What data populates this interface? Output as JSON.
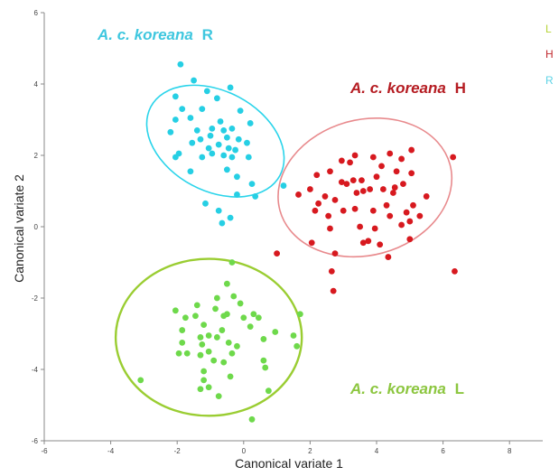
{
  "chart_data": {
    "type": "scatter",
    "xlabel": "Canonical variate 1",
    "ylabel": "Canonical variate 2",
    "xlim": [
      -6,
      9
    ],
    "ylim": [
      -6,
      6
    ],
    "x_ticks": [
      "-6",
      "-4",
      "-2",
      "0",
      "2",
      "4",
      "6",
      "8"
    ],
    "y_ticks": [
      "-6",
      "-4",
      "-2",
      "0",
      "2",
      "4",
      "6"
    ],
    "legend": [
      {
        "label": "L",
        "color": "#b5d334"
      },
      {
        "label": "H",
        "color": "#c0282d"
      },
      {
        "label": "R",
        "color": "#5dd3e6"
      }
    ],
    "annotations": [
      {
        "italic": "A. c. koreana",
        "suffix": "R",
        "color": "#3fc7df"
      },
      {
        "italic": "A. c. koreana",
        "suffix": "H",
        "color": "#b51c22"
      },
      {
        "italic": "A. c. koreana",
        "suffix": "L",
        "color": "#8cc63f"
      }
    ],
    "series": [
      {
        "color": "#2ad4ea",
        "point_color": "#26cfe4",
        "ellipse": {
          "cx": -0.85,
          "cy": 2.4,
          "rx": 1.5,
          "ry": 2.05,
          "angle": 62
        },
        "points": [
          [
            -1.9,
            4.55
          ],
          [
            -1.5,
            4.1
          ],
          [
            -0.4,
            3.9
          ],
          [
            -1.1,
            3.8
          ],
          [
            -2.05,
            3.65
          ],
          [
            -0.8,
            3.6
          ],
          [
            -1.85,
            3.3
          ],
          [
            -1.25,
            3.3
          ],
          [
            -0.1,
            3.25
          ],
          [
            -2.05,
            3.0
          ],
          [
            -1.6,
            3.05
          ],
          [
            -0.7,
            2.95
          ],
          [
            0.2,
            2.9
          ],
          [
            -2.2,
            2.65
          ],
          [
            -1.4,
            2.7
          ],
          [
            -0.6,
            2.7
          ],
          [
            -0.35,
            2.75
          ],
          [
            -0.95,
            2.75
          ],
          [
            -1.0,
            2.55
          ],
          [
            -1.3,
            2.45
          ],
          [
            -0.5,
            2.5
          ],
          [
            -0.15,
            2.45
          ],
          [
            0.1,
            2.35
          ],
          [
            -1.55,
            2.35
          ],
          [
            -0.75,
            2.3
          ],
          [
            -0.45,
            2.2
          ],
          [
            -0.25,
            2.15
          ],
          [
            -1.05,
            2.2
          ],
          [
            -1.95,
            2.05
          ],
          [
            -0.6,
            2.0
          ],
          [
            -0.35,
            1.95
          ],
          [
            -1.25,
            1.95
          ],
          [
            -0.95,
            2.05
          ],
          [
            -2.05,
            1.95
          ],
          [
            0.15,
            1.95
          ],
          [
            -0.5,
            1.6
          ],
          [
            -1.6,
            1.55
          ],
          [
            -0.2,
            1.4
          ],
          [
            0.25,
            1.2
          ],
          [
            1.2,
            1.15
          ],
          [
            -0.2,
            0.9
          ],
          [
            -1.15,
            0.65
          ],
          [
            0.35,
            0.85
          ],
          [
            -0.75,
            0.45
          ],
          [
            -0.65,
            0.1
          ],
          [
            -0.4,
            0.25
          ]
        ]
      },
      {
        "color": "#e88a8d",
        "point_color": "#d7191f",
        "ellipse": {
          "cx": 3.65,
          "cy": 1.1,
          "rx": 2.65,
          "ry": 1.9,
          "angle": 15
        },
        "points": [
          [
            6.3,
            1.95
          ],
          [
            5.05,
            2.15
          ],
          [
            4.4,
            2.05
          ],
          [
            3.35,
            2.0
          ],
          [
            3.9,
            1.95
          ],
          [
            4.75,
            1.9
          ],
          [
            3.2,
            1.8
          ],
          [
            2.95,
            1.85
          ],
          [
            4.15,
            1.7
          ],
          [
            4.6,
            1.55
          ],
          [
            5.05,
            1.5
          ],
          [
            2.6,
            1.55
          ],
          [
            2.2,
            1.45
          ],
          [
            4.0,
            1.4
          ],
          [
            3.3,
            1.3
          ],
          [
            3.55,
            1.3
          ],
          [
            2.95,
            1.25
          ],
          [
            3.1,
            1.2
          ],
          [
            4.8,
            1.2
          ],
          [
            2.0,
            1.05
          ],
          [
            3.8,
            1.05
          ],
          [
            4.2,
            1.05
          ],
          [
            4.55,
            1.1
          ],
          [
            3.6,
            1.0
          ],
          [
            4.5,
            0.95
          ],
          [
            5.5,
            0.85
          ],
          [
            3.4,
            0.95
          ],
          [
            1.65,
            0.9
          ],
          [
            2.45,
            0.85
          ],
          [
            2.75,
            0.75
          ],
          [
            2.25,
            0.65
          ],
          [
            4.3,
            0.6
          ],
          [
            5.1,
            0.6
          ],
          [
            3.0,
            0.45
          ],
          [
            3.35,
            0.5
          ],
          [
            2.15,
            0.45
          ],
          [
            3.9,
            0.45
          ],
          [
            4.9,
            0.4
          ],
          [
            2.55,
            0.3
          ],
          [
            5.3,
            0.3
          ],
          [
            4.4,
            0.3
          ],
          [
            5.0,
            0.15
          ],
          [
            3.5,
            0.0
          ],
          [
            4.75,
            0.05
          ],
          [
            2.6,
            -0.05
          ],
          [
            3.95,
            -0.05
          ],
          [
            1.0,
            -0.75
          ],
          [
            5.0,
            -0.35
          ],
          [
            3.75,
            -0.4
          ],
          [
            2.05,
            -0.45
          ],
          [
            4.1,
            -0.5
          ],
          [
            3.6,
            -0.45
          ],
          [
            2.75,
            -0.75
          ],
          [
            4.35,
            -0.85
          ],
          [
            2.65,
            -1.25
          ],
          [
            6.35,
            -1.25
          ],
          [
            2.7,
            -1.8
          ]
        ]
      },
      {
        "color": "#9acd32",
        "point_color": "#6ed94b",
        "ellipse": {
          "cx": -1.05,
          "cy": -3.1,
          "rx": 2.8,
          "ry": 2.2,
          "angle": 0
        },
        "points": [
          [
            -0.35,
            -1.0
          ],
          [
            -0.5,
            -1.6
          ],
          [
            -0.3,
            -1.95
          ],
          [
            -0.8,
            -2.0
          ],
          [
            -0.1,
            -2.15
          ],
          [
            -1.4,
            -2.2
          ],
          [
            -0.85,
            -2.3
          ],
          [
            -0.5,
            -2.45
          ],
          [
            0.3,
            -2.45
          ],
          [
            -2.05,
            -2.35
          ],
          [
            -1.45,
            -2.5
          ],
          [
            -1.75,
            -2.55
          ],
          [
            -0.6,
            -2.5
          ],
          [
            0.0,
            -2.55
          ],
          [
            0.45,
            -2.55
          ],
          [
            1.7,
            -2.45
          ],
          [
            -1.2,
            -2.75
          ],
          [
            0.2,
            -2.8
          ],
          [
            -0.65,
            -2.9
          ],
          [
            -1.85,
            -2.9
          ],
          [
            -1.3,
            -3.1
          ],
          [
            -1.05,
            -3.05
          ],
          [
            0.95,
            -2.95
          ],
          [
            1.5,
            -3.05
          ],
          [
            -0.8,
            -3.1
          ],
          [
            0.6,
            -3.15
          ],
          [
            -0.45,
            -3.25
          ],
          [
            -1.25,
            -3.3
          ],
          [
            -0.2,
            -3.35
          ],
          [
            -1.85,
            -3.25
          ],
          [
            1.6,
            -3.35
          ],
          [
            -1.05,
            -3.5
          ],
          [
            -1.3,
            -3.6
          ],
          [
            -0.35,
            -3.55
          ],
          [
            -1.95,
            -3.55
          ],
          [
            -1.7,
            -3.55
          ],
          [
            -0.9,
            -3.75
          ],
          [
            -0.6,
            -3.8
          ],
          [
            0.6,
            -3.75
          ],
          [
            -1.2,
            -4.05
          ],
          [
            0.65,
            -3.95
          ],
          [
            -1.2,
            -4.3
          ],
          [
            -0.4,
            -4.2
          ],
          [
            -1.05,
            -4.5
          ],
          [
            -1.3,
            -4.55
          ],
          [
            0.75,
            -4.6
          ],
          [
            -0.75,
            -4.75
          ],
          [
            -3.1,
            -4.3
          ],
          [
            0.25,
            -5.4
          ]
        ]
      }
    ]
  }
}
